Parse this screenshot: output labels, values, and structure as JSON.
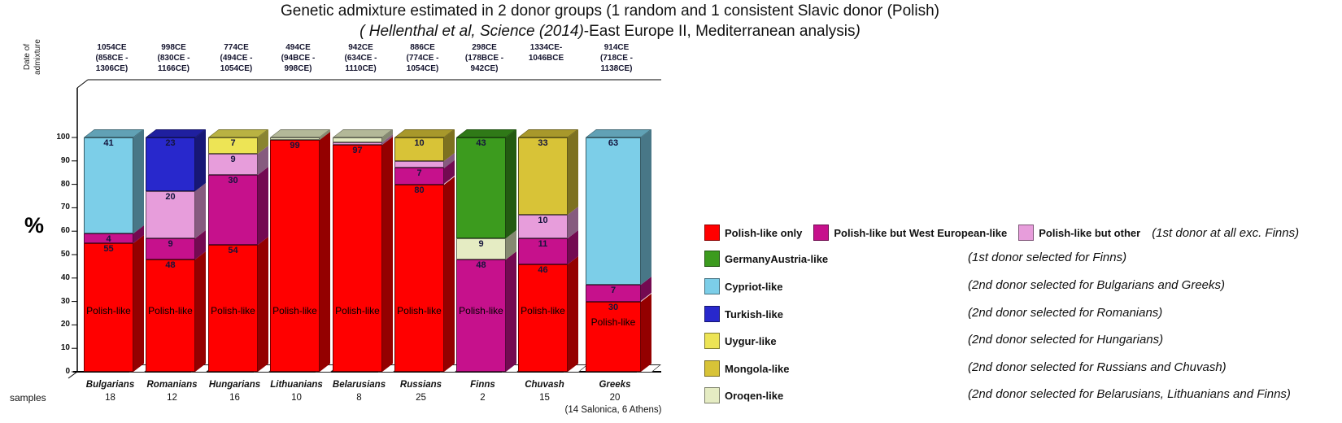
{
  "title": {
    "line1": "Genetic admixture estimated in 2  donor groups (1 random and 1  consistent Slavic donor (Polish)",
    "line2_italic": "( Hellenthal et al, Science (2014)",
    "line2_plain": "-East Europe II, Mediterranean analysis",
    "line2_close": ")"
  },
  "chart_data": {
    "type": "bar",
    "stacked": true,
    "ylabel": "%",
    "ylim": [
      0,
      100
    ],
    "yticks": [
      0,
      10,
      20,
      30,
      40,
      50,
      60,
      70,
      80,
      90,
      100
    ],
    "grid": false,
    "legend_position": "right",
    "date_axis_label": [
      "Date of",
      "admixture"
    ],
    "samples_label": "samples",
    "colors": {
      "polish": "#FF0000",
      "west_european": "#C6118C",
      "other_pink": "#E79DDB",
      "germany_austria": "#3C9B1E",
      "cypriot": "#7CCEE8",
      "turkish": "#2828CC",
      "uygur": "#EDE455",
      "mongola": "#D8C337",
      "oroqen": "#E5ECC3"
    },
    "categories": [
      {
        "name": "Bulgarians",
        "samples": "18",
        "date": [
          "1054CE",
          "(858CE -",
          "1306CE)"
        ],
        "bar_text": "Polish-like",
        "segments": [
          {
            "key": "polish",
            "value": 55,
            "label": "55"
          },
          {
            "key": "west_european",
            "value": 4,
            "label": "4"
          },
          {
            "key": "cypriot",
            "value": 41,
            "label": "41"
          }
        ]
      },
      {
        "name": "Romanians",
        "samples": "12",
        "date": [
          "998CE",
          "(830CE -",
          "1166CE)"
        ],
        "bar_text": "Polish-like",
        "segments": [
          {
            "key": "polish",
            "value": 48,
            "label": "48"
          },
          {
            "key": "west_european",
            "value": 9,
            "label": "9"
          },
          {
            "key": "other_pink",
            "value": 20,
            "label": "20"
          },
          {
            "key": "turkish",
            "value": 23,
            "label": "23"
          }
        ]
      },
      {
        "name": "Hungarians",
        "samples": "16",
        "date": [
          "774CE",
          "(494CE -",
          "1054CE)"
        ],
        "bar_text": "Polish-like",
        "segments": [
          {
            "key": "polish",
            "value": 54,
            "label": "54"
          },
          {
            "key": "west_european",
            "value": 30,
            "label": "30"
          },
          {
            "key": "other_pink",
            "value": 9,
            "label": "9"
          },
          {
            "key": "uygur",
            "value": 7,
            "label": "7"
          }
        ]
      },
      {
        "name": "Lithuanians",
        "samples": "10",
        "date": [
          "494CE",
          "(94BCE -",
          "998CE)"
        ],
        "bar_text": "Polish-like",
        "segments": [
          {
            "key": "polish",
            "value": 99,
            "label": "99"
          },
          {
            "key": "oroqen",
            "value": 1
          }
        ]
      },
      {
        "name": "Belarusians",
        "samples": "8",
        "date": [
          "942CE",
          "(634CE -",
          "1110CE)"
        ],
        "bar_text": "Polish-like",
        "segments": [
          {
            "key": "polish",
            "value": 97,
            "label": "97"
          },
          {
            "key": "other_pink",
            "value": 1
          },
          {
            "key": "oroqen",
            "value": 2
          }
        ]
      },
      {
        "name": "Russians",
        "samples": "25",
        "date": [
          "886CE",
          "(774CE -",
          "1054CE)"
        ],
        "bar_text": "Polish-like",
        "segments": [
          {
            "key": "polish",
            "value": 80,
            "label": "80"
          },
          {
            "key": "west_european",
            "value": 7,
            "label": "7"
          },
          {
            "key": "other_pink",
            "value": 3
          },
          {
            "key": "mongola",
            "value": 10,
            "label": "10"
          }
        ]
      },
      {
        "name": "Finns",
        "samples": "2",
        "date": [
          "298CE",
          "(178BCE -",
          "942CE)"
        ],
        "bar_text": "Polish-like",
        "segments": [
          {
            "key": "west_european",
            "value": 48,
            "label": "48"
          },
          {
            "key": "oroqen",
            "value": 9,
            "label": "9"
          },
          {
            "key": "germany_austria",
            "value": 43,
            "label": "43"
          }
        ]
      },
      {
        "name": "Chuvash",
        "samples": "15",
        "date": [
          "1334CE-",
          "1046BCE"
        ],
        "bar_text": "Polish-like",
        "segments": [
          {
            "key": "polish",
            "value": 46,
            "label": "46"
          },
          {
            "key": "west_european",
            "value": 11,
            "label": "11"
          },
          {
            "key": "other_pink",
            "value": 10,
            "label": "10"
          },
          {
            "key": "mongola",
            "value": 33,
            "label": "33"
          }
        ]
      },
      {
        "name": "Greeks",
        "samples": "20",
        "samples_note": "(14 Salonica, 6 Athens)",
        "date": [
          "914CE",
          "(718CE -",
          "1138CE)"
        ],
        "bar_text": "Polish-like",
        "text_below_label": true,
        "segments": [
          {
            "key": "polish",
            "value": 30,
            "label": "30"
          },
          {
            "key": "west_european",
            "value": 7,
            "label": "7"
          },
          {
            "key": "cypriot",
            "value": 63,
            "label": "63"
          }
        ]
      }
    ],
    "legend_rows": [
      {
        "items": [
          {
            "color": "polish",
            "label": "Polish-like only"
          },
          {
            "color": "west_european",
            "label": "Polish-like but West European-like"
          },
          {
            "color": "other_pink",
            "label": "Polish-like but other"
          }
        ],
        "note": "(1st donor at all exc. Finns)",
        "note_inline": true
      },
      {
        "items": [
          {
            "color": "germany_austria",
            "label": "GermanyAustria-like"
          }
        ],
        "note": "(1st donor selected  for Finns)"
      },
      {
        "items": [
          {
            "color": "cypriot",
            "label": "Cypriot-like"
          }
        ],
        "note": "(2nd donor selected for Bulgarians and Greeks)"
      },
      {
        "items": [
          {
            "color": "turkish",
            "label": "Turkish-like"
          }
        ],
        "note": "(2nd donor selected for Romanians)"
      },
      {
        "items": [
          {
            "color": "uygur",
            "label": "Uygur-like"
          }
        ],
        "note": "(2nd donor selected for Hungarians)"
      },
      {
        "items": [
          {
            "color": "mongola",
            "label": "Mongola-like"
          }
        ],
        "note": "(2nd donor selected for Russians and Chuvash)"
      },
      {
        "items": [
          {
            "color": "oroqen",
            "label": "Oroqen-like"
          }
        ],
        "note": "(2nd donor selected for Belarusians, Lithuanians and Finns)"
      }
    ]
  }
}
